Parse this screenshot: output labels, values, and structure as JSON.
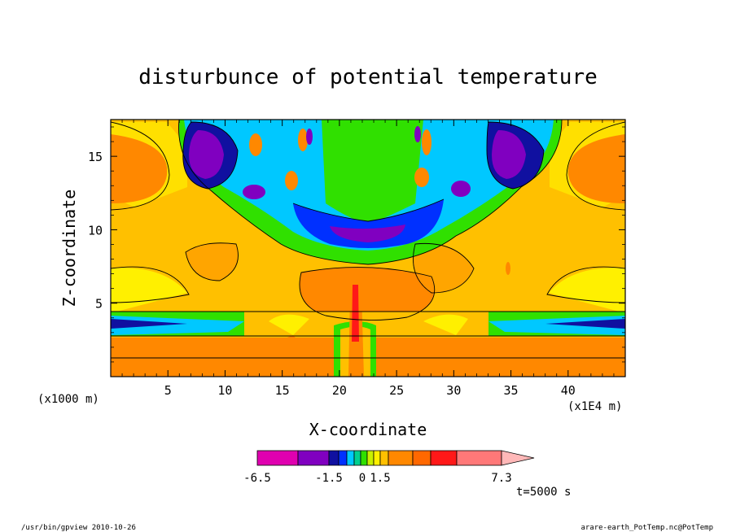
{
  "chart_data": {
    "type": "heatmap",
    "title": "disturbunce of potential temperature",
    "xlabel": "X-coordinate",
    "ylabel": "Z-coordinate",
    "x_units_left": "(x1000 m)",
    "x_units_right": "(x1E4 m)",
    "xlim": [
      0,
      45
    ],
    "ylim": [
      0,
      17.5
    ],
    "x_ticks": [
      5,
      10,
      15,
      20,
      25,
      30,
      35,
      40
    ],
    "y_ticks": [
      5,
      10,
      15
    ],
    "x_tick_labels": [
      "5",
      "10",
      "15",
      "20",
      "25",
      "30",
      "35",
      "40"
    ],
    "y_tick_labels": [
      "5",
      "10",
      "15"
    ],
    "colorbar": {
      "colors": [
        "#e000b0",
        "#8000c0",
        "#1010a0",
        "#0030ff",
        "#00c8ff",
        "#00d090",
        "#30e000",
        "#c8f000",
        "#fff000",
        "#ffc000",
        "#ff8800",
        "#ff6800",
        "#ff1818",
        "#ff7878",
        "#ffb8b8"
      ],
      "tick_labels": [
        "-6.5",
        "-1.5",
        "0",
        "1.5",
        "7.3"
      ],
      "extend": "max"
    },
    "time_label": "t=5000 s"
  },
  "footer": {
    "left": "/usr/bin/gpview  2010-10-26",
    "right": "arare-earth_PotTemp.nc@PotTemp"
  }
}
